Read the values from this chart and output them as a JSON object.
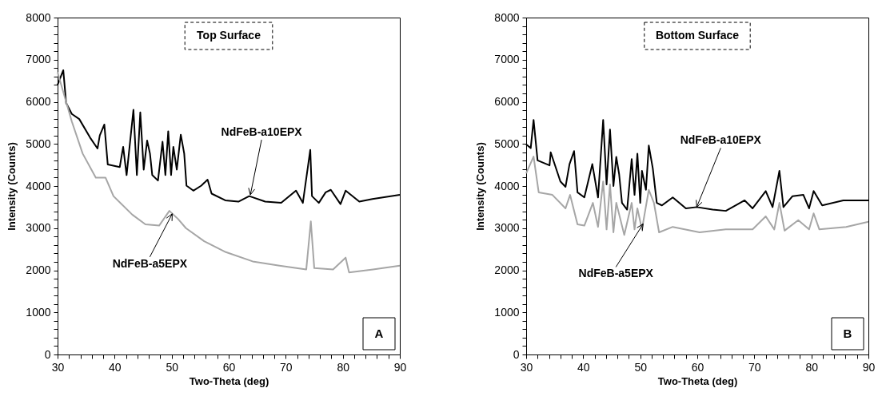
{
  "chart_data": [
    {
      "type": "line",
      "xlabel": "Two-Theta (deg)",
      "ylabel": "Intensity (Counts)",
      "xlim": [
        30,
        90
      ],
      "ylim": [
        0,
        8000
      ],
      "xticks": [
        30,
        {
          "value": 32,
          "label": null
        },
        {
          "value": 34,
          "label": null
        },
        {
          "value": 36,
          "label": null
        },
        {
          "value": 38,
          "label": null
        },
        40,
        {
          "value": 42,
          "label": null
        },
        {
          "value": 44,
          "label": null
        },
        {
          "value": 46,
          "label": null
        },
        {
          "value": 48,
          "label": null
        },
        50,
        {
          "value": 52,
          "label": null
        },
        {
          "value": 54,
          "label": null
        },
        {
          "value": 56,
          "label": null
        },
        {
          "value": 58,
          "label": null
        },
        60,
        {
          "value": 62,
          "label": null
        },
        {
          "value": 64,
          "label": null
        },
        {
          "value": 66,
          "label": null
        },
        {
          "value": 68,
          "label": null
        },
        70,
        {
          "value": 72,
          "label": null
        },
        {
          "value": 74,
          "label": null
        },
        {
          "value": 76,
          "label": null
        },
        {
          "value": 78,
          "label": null
        },
        80,
        {
          "value": 82,
          "label": null
        },
        {
          "value": 84,
          "label": null
        },
        {
          "value": 86,
          "label": null
        },
        {
          "value": 88,
          "label": null
        },
        90
      ],
      "yticks": [
        0,
        {
          "value": 200,
          "label": null
        },
        {
          "value": 400,
          "label": null
        },
        {
          "value": 600,
          "label": null
        },
        {
          "value": 800,
          "label": null
        },
        1000,
        {
          "value": 1200,
          "label": null
        },
        {
          "value": 1400,
          "label": null
        },
        {
          "value": 1600,
          "label": null
        },
        {
          "value": 1800,
          "label": null
        },
        2000,
        {
          "value": 2200,
          "label": null
        },
        {
          "value": 2400,
          "label": null
        },
        {
          "value": 2600,
          "label": null
        },
        {
          "value": 2800,
          "label": null
        },
        3000,
        {
          "value": 3200,
          "label": null
        },
        {
          "value": 3400,
          "label": null
        },
        {
          "value": 3600,
          "label": null
        },
        {
          "value": 3800,
          "label": null
        },
        4000,
        {
          "value": 4200,
          "label": null
        },
        {
          "value": 4400,
          "label": null
        },
        {
          "value": 4600,
          "label": null
        },
        {
          "value": 4800,
          "label": null
        },
        5000,
        {
          "value": 5200,
          "label": null
        },
        {
          "value": 5400,
          "label": null
        },
        {
          "value": 5600,
          "label": null
        },
        {
          "value": 5800,
          "label": null
        },
        6000,
        {
          "value": 6200,
          "label": null
        },
        {
          "value": 6400,
          "label": null
        },
        {
          "value": 6600,
          "label": null
        },
        {
          "value": 6800,
          "label": null
        },
        7000,
        {
          "value": 7200,
          "label": null
        },
        {
          "value": 7400,
          "label": null
        },
        {
          "value": 7600,
          "label": null
        },
        {
          "value": 7800,
          "label": null
        },
        8000
      ],
      "grid": false,
      "series": [
        {
          "color": "#000000",
          "x": [
            30,
            31.0,
            31.5,
            32.5,
            33.8,
            35.7,
            37.0,
            37.4,
            38.2,
            38.8,
            40.9,
            41.5,
            42.1,
            43.3,
            43.9,
            44.5,
            45.1,
            45.7,
            46.2,
            46.6,
            47.6,
            48.4,
            48.9,
            49.4,
            49.9,
            50.3,
            50.9,
            51.6,
            52.2,
            52.6,
            53.8,
            55.2,
            56.3,
            57.0,
            59.4,
            61.7,
            63.6,
            66.4,
            69.2,
            71.8,
            73.0,
            74.3,
            74.6,
            75.8,
            77.0,
            77.9,
            79.6,
            80.5,
            82.9,
            85.2,
            90
          ],
          "values": [
            6400,
            6750,
            5970,
            5710,
            5590,
            5150,
            4890,
            5200,
            5460,
            4510,
            4450,
            4930,
            4260,
            5810,
            4260,
            5750,
            4390,
            5080,
            4770,
            4260,
            4130,
            5050,
            4260,
            5300,
            4260,
            4930,
            4390,
            5220,
            4770,
            4010,
            3890,
            4010,
            4150,
            3820,
            3660,
            3630,
            3760,
            3630,
            3600,
            3890,
            3600,
            4860,
            3760,
            3600,
            3850,
            3910,
            3570,
            3890,
            3630,
            3690,
            3790
          ]
        },
        {
          "color": "#a6a6a6",
          "x": [
            30,
            32.5,
            34.4,
            36.7,
            38.4,
            39.8,
            43.1,
            45.4,
            47.8,
            49.6,
            51.1,
            52.5,
            55.7,
            59.5,
            64.2,
            68.9,
            73.6,
            74.4,
            75.0,
            78.3,
            80.5,
            81.1,
            85.3,
            90
          ],
          "values": [
            6700,
            5530,
            4770,
            4200,
            4200,
            3760,
            3320,
            3090,
            3060,
            3410,
            3220,
            3000,
            2690,
            2430,
            2210,
            2110,
            2020,
            3160,
            2050,
            2020,
            2300,
            1950,
            2020,
            2110
          ]
        }
      ],
      "annotations": [
        "Top Surface",
        "A",
        {
          "text": "NdFeB-a10EPX",
          "x": 63.8,
          "y": 3790
        },
        {
          "text": "NdFeB-a5EPX",
          "x": 50.1,
          "y": 3340
        }
      ]
    },
    {
      "type": "line",
      "xlabel": "Two-Theta (deg)",
      "ylabel": "Intensity (Counts)",
      "xlim": [
        30,
        90
      ],
      "ylim": [
        0,
        8000
      ],
      "xticks": [
        30,
        {
          "value": 32,
          "label": null
        },
        {
          "value": 34,
          "label": null
        },
        {
          "value": 36,
          "label": null
        },
        {
          "value": 38,
          "label": null
        },
        40,
        {
          "value": 42,
          "label": null
        },
        {
          "value": 44,
          "label": null
        },
        {
          "value": 46,
          "label": null
        },
        {
          "value": 48,
          "label": null
        },
        50,
        {
          "value": 52,
          "label": null
        },
        {
          "value": 54,
          "label": null
        },
        {
          "value": 56,
          "label": null
        },
        {
          "value": 58,
          "label": null
        },
        60,
        {
          "value": 62,
          "label": null
        },
        {
          "value": 64,
          "label": null
        },
        {
          "value": 66,
          "label": null
        },
        {
          "value": 68,
          "label": null
        },
        70,
        {
          "value": 72,
          "label": null
        },
        {
          "value": 74,
          "label": null
        },
        {
          "value": 76,
          "label": null
        },
        {
          "value": 78,
          "label": null
        },
        80,
        {
          "value": 82,
          "label": null
        },
        {
          "value": 84,
          "label": null
        },
        {
          "value": 86,
          "label": null
        },
        {
          "value": 88,
          "label": null
        },
        90
      ],
      "yticks": [
        0,
        {
          "value": 200,
          "label": null
        },
        {
          "value": 400,
          "label": null
        },
        {
          "value": 600,
          "label": null
        },
        {
          "value": 800,
          "label": null
        },
        1000,
        {
          "value": 1200,
          "label": null
        },
        {
          "value": 1400,
          "label": null
        },
        {
          "value": 1600,
          "label": null
        },
        {
          "value": 1800,
          "label": null
        },
        2000,
        {
          "value": 2200,
          "label": null
        },
        {
          "value": 2400,
          "label": null
        },
        {
          "value": 2600,
          "label": null
        },
        {
          "value": 2800,
          "label": null
        },
        3000,
        {
          "value": 3200,
          "label": null
        },
        {
          "value": 3400,
          "label": null
        },
        {
          "value": 3600,
          "label": null
        },
        {
          "value": 3800,
          "label": null
        },
        4000,
        {
          "value": 4200,
          "label": null
        },
        {
          "value": 4400,
          "label": null
        },
        {
          "value": 4600,
          "label": null
        },
        {
          "value": 4800,
          "label": null
        },
        5000,
        {
          "value": 5200,
          "label": null
        },
        {
          "value": 5400,
          "label": null
        },
        {
          "value": 5600,
          "label": null
        },
        {
          "value": 5800,
          "label": null
        },
        6000,
        {
          "value": 6200,
          "label": null
        },
        {
          "value": 6400,
          "label": null
        },
        {
          "value": 6600,
          "label": null
        },
        {
          "value": 6800,
          "label": null
        },
        7000,
        {
          "value": 7200,
          "label": null
        },
        {
          "value": 7400,
          "label": null
        },
        {
          "value": 7600,
          "label": null
        },
        {
          "value": 7800,
          "label": null
        },
        8000
      ],
      "grid": false,
      "series": [
        {
          "color": "#000000",
          "x": [
            30,
            30.8,
            31.3,
            32.0,
            34.1,
            34.3,
            36.0,
            36.9,
            37.6,
            38.4,
            39.0,
            40.2,
            41.6,
            42.6,
            43.5,
            44.1,
            44.7,
            45.3,
            45.8,
            46.3,
            46.8,
            47.7,
            48.5,
            49.0,
            49.5,
            50.0,
            50.3,
            51.0,
            51.5,
            52.2,
            52.9,
            53.8,
            55.7,
            58.0,
            59.9,
            62.7,
            65.0,
            68.3,
            69.7,
            72.0,
            73.2,
            74.4,
            75.1,
            76.7,
            78.6,
            79.6,
            80.4,
            81.9,
            85.6,
            90
          ],
          "values": [
            4990,
            4900,
            5570,
            4610,
            4490,
            4800,
            4110,
            3980,
            4520,
            4830,
            3850,
            3730,
            4520,
            3730,
            5570,
            4040,
            5340,
            4000,
            4690,
            4280,
            3600,
            3440,
            4640,
            3790,
            4770,
            3600,
            4360,
            3910,
            4960,
            4420,
            3600,
            3540,
            3730,
            3470,
            3500,
            3440,
            3410,
            3660,
            3470,
            3880,
            3500,
            4360,
            3500,
            3760,
            3790,
            3470,
            3880,
            3540,
            3660,
            3660
          ]
        },
        {
          "color": "#a6a6a6",
          "x": [
            30,
            31.3,
            32.2,
            34.6,
            36.9,
            37.7,
            39.0,
            40.2,
            41.7,
            42.6,
            43.5,
            44.1,
            44.7,
            45.3,
            45.8,
            47.2,
            48.5,
            49.0,
            49.5,
            50.3,
            51.5,
            52.4,
            53.3,
            55.7,
            60.4,
            65.0,
            69.7,
            72.0,
            73.5,
            74.4,
            75.3,
            77.7,
            79.6,
            80.4,
            81.4,
            86.1,
            90
          ],
          "values": [
            4300,
            4700,
            3850,
            3790,
            3470,
            3790,
            3090,
            3060,
            3600,
            3030,
            4110,
            2970,
            4040,
            2900,
            3600,
            2840,
            3600,
            2970,
            3470,
            2970,
            3910,
            3600,
            2900,
            3030,
            2900,
            2970,
            2970,
            3280,
            2970,
            3600,
            2940,
            3190,
            2970,
            3350,
            2970,
            3030,
            3150
          ]
        }
      ],
      "annotations": [
        "Bottom Surface",
        "B",
        {
          "text": "NdFeB-a10EPX",
          "x": 59.9,
          "y": 3500
        },
        {
          "text": "NdFeB-a5EPX",
          "x": 50.5,
          "y": 3100
        }
      ]
    }
  ]
}
